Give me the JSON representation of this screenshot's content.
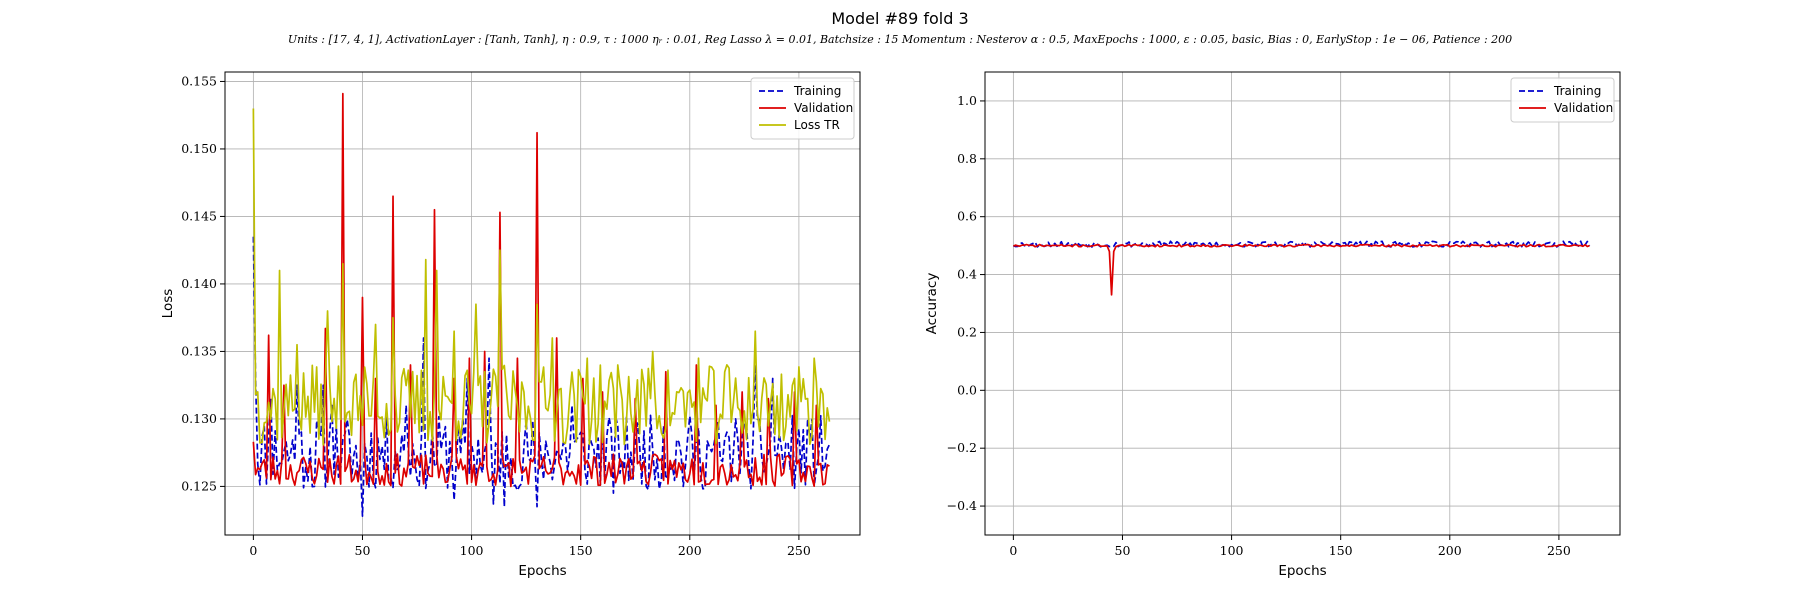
{
  "figure": {
    "title": "Model #89 fold 3",
    "subtitle": "Units : [17, 4, 1], ActivationLayer : [Tanh, Tanh], η : 0.9, τ : 1000 ηᵣ : 0.01, Reg Lasso λ = 0.01, Batchsize : 15 Momentum : Nesterov α : 0.5, MaxEpochs : 1000, ε : 0.05, basic, Bias : 0, EarlyStop : 1e − 06, Patience : 200"
  },
  "chart_data": [
    {
      "type": "line",
      "xlabel": "Epochs",
      "ylabel": "Loss",
      "xlim": [
        -13,
        278
      ],
      "ylim": [
        0.1214,
        0.1557
      ],
      "xticks": [
        0,
        50,
        100,
        150,
        200,
        250
      ],
      "yticks": [
        0.125,
        0.13,
        0.135,
        0.14,
        0.145,
        0.15,
        0.155
      ],
      "ytick_labels": [
        "0.125",
        "0.130",
        "0.135",
        "0.140",
        "0.145",
        "0.150",
        "0.155"
      ],
      "grid": true,
      "legend": "top-right",
      "n_epochs": 265,
      "series": [
        {
          "name": "Training",
          "color": "#0000cc",
          "dash": "6,3",
          "base": 0.1275,
          "amp": 0.0028,
          "seed": 11,
          "peaks": [
            [
              0,
              0.1435
            ],
            [
              1,
              0.133
            ],
            [
              8,
              0.1315
            ],
            [
              20,
              0.1325
            ],
            [
              28,
              0.125
            ],
            [
              32,
              0.1325
            ],
            [
              36,
              0.131
            ],
            [
              41,
              0.1285
            ],
            [
              48,
              0.1255
            ],
            [
              50,
              0.1228
            ],
            [
              58,
              0.127
            ],
            [
              70,
              0.131
            ],
            [
              78,
              0.136
            ],
            [
              92,
              0.124
            ],
            [
              98,
              0.133
            ],
            [
              108,
              0.1345
            ],
            [
              110,
              0.1237
            ],
            [
              115,
              0.1235
            ],
            [
              119,
              0.125
            ],
            [
              130,
              0.1235
            ],
            [
              146,
              0.131
            ],
            [
              165,
              0.1245
            ],
            [
              188,
              0.1295
            ],
            [
              197,
              0.125
            ],
            [
              214,
              0.127
            ],
            [
              222,
              0.1285
            ],
            [
              230,
              0.134
            ],
            [
              238,
              0.133
            ],
            [
              262,
              0.1265
            ]
          ]
        },
        {
          "name": "Validation",
          "color": "#dd0000",
          "dash": "",
          "base": 0.1262,
          "amp": 0.0012,
          "seed": 23,
          "peaks": [
            [
              0,
              0.1283
            ],
            [
              7,
              0.1362
            ],
            [
              14,
              0.1325
            ],
            [
              33,
              0.1367
            ],
            [
              41,
              0.1541
            ],
            [
              50,
              0.139
            ],
            [
              56,
              0.133
            ],
            [
              64,
              0.1465
            ],
            [
              72,
              0.134
            ],
            [
              83,
              0.1455
            ],
            [
              92,
              0.133
            ],
            [
              99,
              0.1345
            ],
            [
              106,
              0.135
            ],
            [
              113,
              0.1453
            ],
            [
              121,
              0.1345
            ],
            [
              130,
              0.1512
            ],
            [
              139,
              0.136
            ],
            [
              151,
              0.133
            ],
            [
              160,
              0.132
            ],
            [
              175,
              0.1315
            ],
            [
              189,
              0.1335
            ],
            [
              203,
              0.134
            ],
            [
              212,
              0.131
            ],
            [
              224,
              0.132
            ],
            [
              236,
              0.1315
            ],
            [
              248,
              0.132
            ],
            [
              258,
              0.131
            ],
            [
              264,
              0.1265
            ]
          ]
        },
        {
          "name": "Loss TR",
          "color": "#bfbf00",
          "dash": "",
          "base": 0.131,
          "amp": 0.003,
          "seed": 37,
          "peaks": [
            [
              0,
              0.153
            ],
            [
              2,
              0.132
            ],
            [
              12,
              0.141
            ],
            [
              20,
              0.1355
            ],
            [
              34,
              0.138
            ],
            [
              41,
              0.1415
            ],
            [
              56,
              0.137
            ],
            [
              64,
              0.1375
            ],
            [
              79,
              0.1418
            ],
            [
              84,
              0.141
            ],
            [
              92,
              0.1365
            ],
            [
              102,
              0.1385
            ],
            [
              113,
              0.1425
            ],
            [
              130,
              0.1385
            ],
            [
              137,
              0.136
            ],
            [
              153,
              0.1345
            ],
            [
              167,
              0.134
            ],
            [
              183,
              0.135
            ],
            [
              204,
              0.1345
            ],
            [
              217,
              0.134
            ],
            [
              230,
              0.1365
            ],
            [
              248,
              0.133
            ],
            [
              257,
              0.1345
            ],
            [
              264,
              0.1298
            ]
          ]
        }
      ]
    },
    {
      "type": "line",
      "xlabel": "Epochs",
      "ylabel": "Accuracy",
      "xlim": [
        -13,
        278
      ],
      "ylim": [
        -0.5,
        1.1
      ],
      "xticks": [
        0,
        50,
        100,
        150,
        200,
        250
      ],
      "yticks": [
        -0.4,
        -0.2,
        0.0,
        0.2,
        0.4,
        0.6,
        0.8,
        1.0
      ],
      "ytick_labels": [
        "−0.4",
        "−0.2",
        "0.0",
        "0.2",
        "0.4",
        "0.6",
        "0.8",
        "1.0"
      ],
      "grid": true,
      "legend": "top-right",
      "n_epochs": 265,
      "series": [
        {
          "name": "Training",
          "color": "#0000cc",
          "dash": "6,3",
          "base": 0.505,
          "amp": 0.01,
          "seed": 53,
          "peaks": []
        },
        {
          "name": "Validation",
          "color": "#dd0000",
          "dash": "",
          "base": 0.5,
          "amp": 0.004,
          "seed": 71,
          "peaks": [
            [
              44,
              0.48
            ],
            [
              45,
              0.33
            ],
            [
              46,
              0.48
            ]
          ]
        }
      ]
    }
  ]
}
